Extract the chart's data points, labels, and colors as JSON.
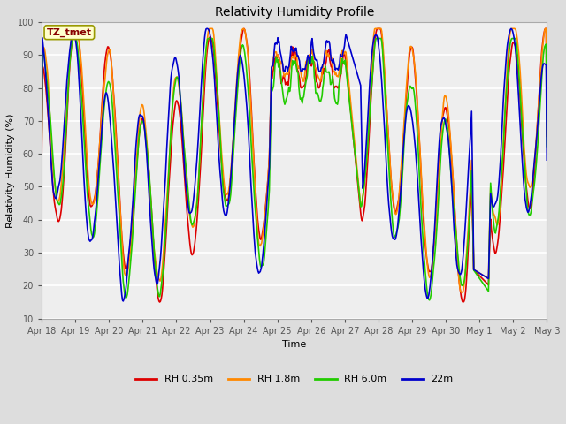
{
  "title": "Relativity Humidity Profile",
  "xlabel": "Time",
  "ylabel": "Relativity Humidity (%)",
  "ylim": [
    10,
    100
  ],
  "yticks": [
    10,
    20,
    30,
    40,
    50,
    60,
    70,
    80,
    90,
    100
  ],
  "colors": {
    "RH 0.35m": "#dd0000",
    "RH 1.8m": "#ff8800",
    "RH 6.0m": "#22cc00",
    "22m": "#0000cc"
  },
  "legend_labels": [
    "RH 0.35m",
    "RH 1.8m",
    "RH 6.0m",
    "22m"
  ],
  "annotation_text": "TZ_tmet",
  "annotation_color": "#880000",
  "annotation_bg": "#ffffcc",
  "background_color": "#dddddd",
  "plot_bg": "#eeeeee",
  "grid_color": "#ffffff",
  "x_tick_labels": [
    "Apr 18",
    "Apr 19",
    "Apr 20",
    "Apr 21",
    "Apr 22",
    "Apr 23",
    "Apr 24",
    "Apr 25",
    "Apr 26",
    "Apr 27",
    "Apr 28",
    "Apr 29",
    "Apr 30",
    "May 1",
    "May 2",
    "May 3"
  ],
  "line_width": 1.2,
  "figwidth": 6.4,
  "figheight": 4.8,
  "dpi": 100
}
